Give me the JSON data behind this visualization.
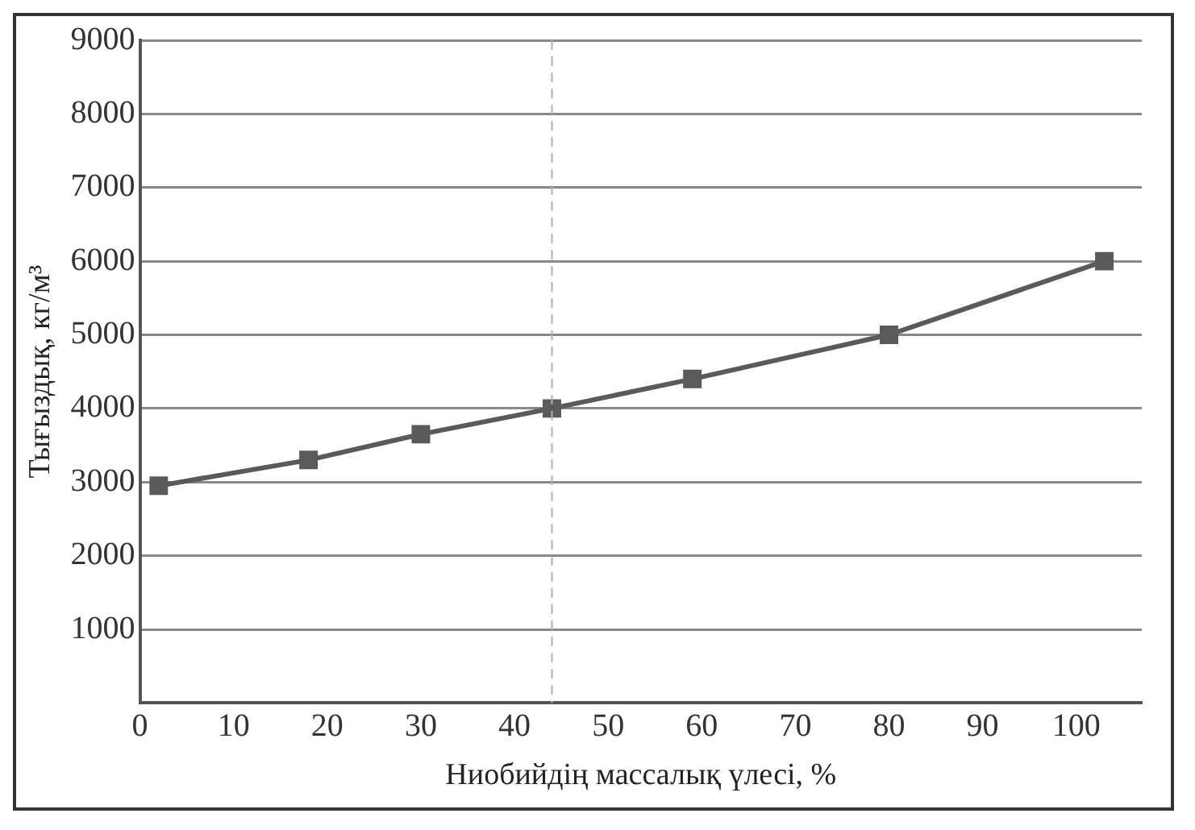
{
  "chart_data": {
    "type": "line",
    "xlabel": "Ниобийдің массалық үлесі, %",
    "ylabel": "Тығыздық, кг/м³",
    "x": [
      2,
      18,
      30,
      44,
      59,
      80,
      103
    ],
    "series": [
      {
        "color": "#5a5a5a",
        "values": [
          2950,
          3300,
          3650,
          4000,
          4400,
          5000,
          6000
        ]
      }
    ],
    "xlim": [
      0,
      107
    ],
    "xticks": [
      0,
      10,
      20,
      30,
      40,
      50,
      60,
      70,
      80,
      90,
      100
    ],
    "ylim": [
      0,
      9000
    ],
    "yticks": [
      1000,
      2000,
      3000,
      4000,
      5000,
      6000,
      7000,
      8000,
      9000
    ],
    "grid": "y",
    "marker": "square",
    "line_style": "solid",
    "legend": false,
    "ref_lines": [
      {
        "axis": "x",
        "value": 44,
        "color": "#b0b0b0",
        "line_style": "dashed"
      }
    ]
  }
}
